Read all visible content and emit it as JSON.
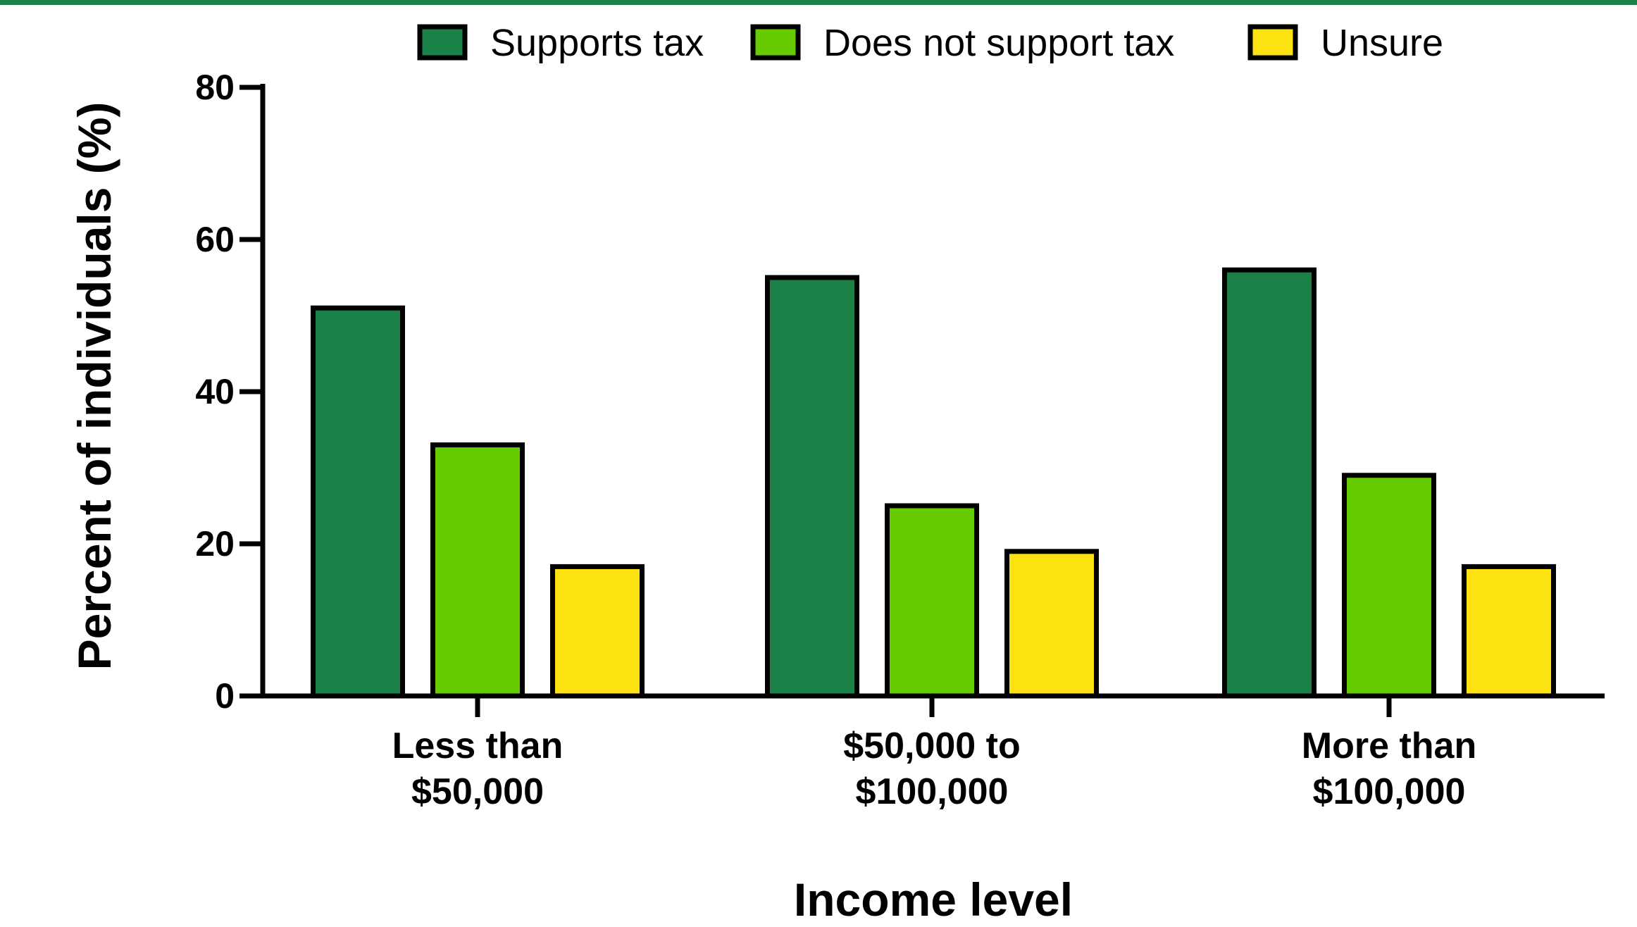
{
  "chart_data": {
    "type": "bar",
    "categories": [
      [
        "Less than",
        "$50,000"
      ],
      [
        "$50,000 to",
        "$100,000"
      ],
      [
        "More than",
        "$100,000"
      ]
    ],
    "series": [
      {
        "name": "Supports tax",
        "color": "#1a8147",
        "values": [
          51,
          55,
          56
        ]
      },
      {
        "name": "Does not support tax",
        "color": "#66cc00",
        "values": [
          33,
          25,
          29
        ]
      },
      {
        "name": "Unsure",
        "color": "#fde212",
        "values": [
          17,
          19,
          17
        ]
      }
    ],
    "xlabel": "Income level",
    "ylabel": "Percent of individuals (%)",
    "ylim": [
      0,
      80
    ],
    "yticks": [
      "0",
      "20",
      "40",
      "60",
      "80"
    ],
    "grid": false,
    "legend": "top"
  }
}
